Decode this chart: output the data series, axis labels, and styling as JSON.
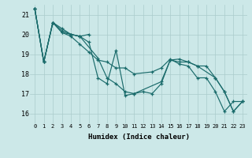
{
  "xlabel": "Humidex (Indice chaleur)",
  "ylabel": "",
  "background_color": "#cce8e8",
  "grid_color": "#aacccc",
  "line_color": "#1a6b6b",
  "xlim": [
    -0.5,
    23.5
  ],
  "ylim": [
    15.5,
    21.5
  ],
  "yticks": [
    16,
    17,
    18,
    19,
    20,
    21
  ],
  "xticks": [
    0,
    1,
    2,
    3,
    4,
    5,
    6,
    7,
    8,
    9,
    10,
    11,
    12,
    13,
    14,
    15,
    16,
    17,
    18,
    19,
    20,
    21,
    22,
    23
  ],
  "line1_x": [
    0,
    1,
    2,
    3,
    4,
    5,
    6
  ],
  "line1_y": [
    21.3,
    18.6,
    20.6,
    20.3,
    20.0,
    19.9,
    20.0
  ],
  "line2_x": [
    0,
    1,
    2,
    3,
    4,
    5,
    6,
    7,
    8,
    9,
    10,
    11,
    12,
    13,
    14,
    15,
    16,
    17,
    18,
    19,
    20,
    21,
    22,
    23
  ],
  "line2_y": [
    21.3,
    18.6,
    20.6,
    20.2,
    20.0,
    19.9,
    19.6,
    17.8,
    17.5,
    19.2,
    16.9,
    17.0,
    17.1,
    17.0,
    17.5,
    18.7,
    18.6,
    18.6,
    18.4,
    18.4,
    17.8,
    17.1,
    16.1,
    16.6
  ],
  "line3_x": [
    0,
    1,
    2,
    3,
    4,
    5,
    7,
    8,
    9,
    10,
    11,
    14,
    15,
    16,
    17,
    18,
    20,
    21,
    22,
    23
  ],
  "line3_y": [
    21.3,
    18.6,
    20.6,
    20.1,
    20.0,
    19.9,
    18.8,
    17.8,
    17.5,
    17.1,
    17.0,
    17.6,
    18.7,
    18.75,
    18.6,
    18.4,
    17.8,
    17.1,
    16.1,
    16.6
  ],
  "line4_x": [
    0,
    1,
    2,
    3,
    4,
    5,
    6,
    7,
    8,
    9,
    10,
    11,
    13,
    14,
    15,
    16,
    17,
    18,
    19,
    20,
    21,
    22,
    23
  ],
  "line4_y": [
    21.3,
    18.6,
    20.6,
    20.1,
    19.9,
    19.5,
    19.1,
    18.7,
    18.6,
    18.3,
    18.3,
    18.0,
    18.1,
    18.3,
    18.75,
    18.5,
    18.4,
    17.8,
    17.8,
    17.1,
    16.1,
    16.6,
    16.6
  ]
}
